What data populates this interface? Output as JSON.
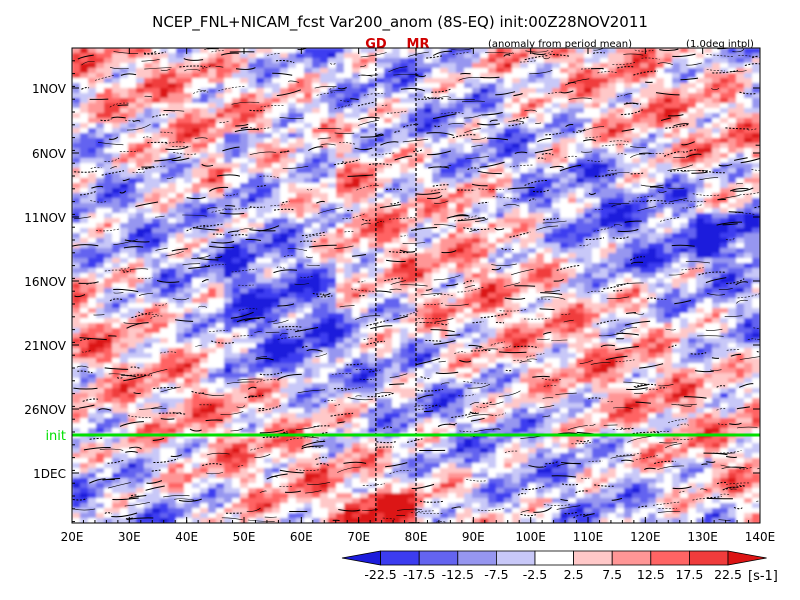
{
  "chart_data": {
    "type": "heatmap",
    "title": "NCEP_FNL+NICAM_fcst Var200_anom (8S-EQ) init:00Z28NOV2011",
    "subtitle_left": "(anomaly from period mean)",
    "subtitle_right": "(1.0deg intpl)",
    "markers": [
      {
        "label": "GD",
        "lon": 73,
        "color": "#d00000"
      },
      {
        "label": "MR",
        "lon": 80,
        "color": "#d00000"
      }
    ],
    "init_line": {
      "label": "init",
      "date": "28NOV",
      "color": "#00e000"
    },
    "x_ticks": [
      "20E",
      "30E",
      "40E",
      "50E",
      "60E",
      "70E",
      "80E",
      "90E",
      "100E",
      "110E",
      "120E",
      "130E",
      "140E"
    ],
    "x_range": [
      20,
      140
    ],
    "y_ticks": [
      "1NOV",
      "6NOV",
      "11NOV",
      "16NOV",
      "21NOV",
      "26NOV",
      "1DEC"
    ],
    "colorbar": {
      "labels": [
        "-22.5",
        "-17.5",
        "-12.5",
        "-7.5",
        "-2.5",
        "2.5",
        "7.5",
        "12.5",
        "17.5",
        "22.5"
      ],
      "unit": "[s-1]",
      "colors": [
        "#1c1cdc",
        "#3c3cf0",
        "#6464f0",
        "#9696f0",
        "#c8c8f8",
        "#ffffff",
        "#ffc8c8",
        "#ff9696",
        "#ff6464",
        "#f03c3c",
        "#dc1414"
      ]
    }
  }
}
